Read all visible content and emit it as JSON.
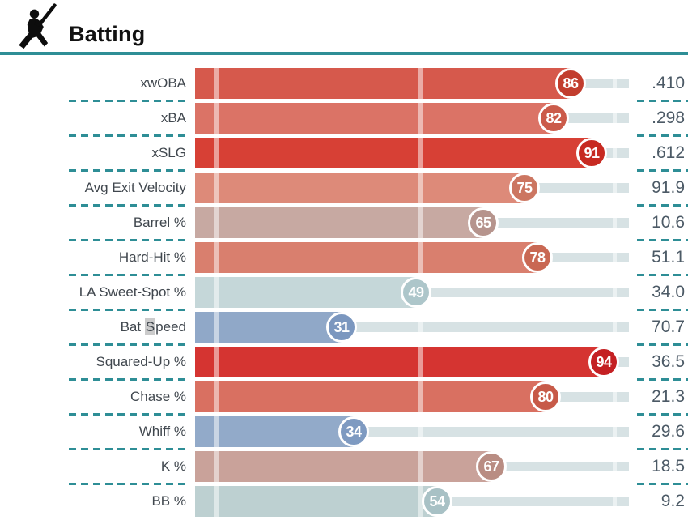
{
  "header": {
    "title": "Batting"
  },
  "colors": {
    "accent_teal": "#2E8E96",
    "track": "#D7E2E4",
    "label_text": "#40474E",
    "value_text": "#4C5A66",
    "selection_highlight": "#CBCBCB"
  },
  "chart_data": {
    "type": "bar",
    "orientation": "horizontal",
    "title": "Batting",
    "percentile_scale": [
      0,
      100
    ],
    "legend": "circle badge = percentile rank, right column = raw stat value",
    "rows": [
      {
        "label": "xwOBA",
        "percentile": 86,
        "value": ".410",
        "bar_color": "#D6594C",
        "circle_color": "#C23D2E"
      },
      {
        "label": "xBA",
        "percentile": 82,
        "value": ".298",
        "bar_color": "#DB7366",
        "circle_color": "#CB5B4A"
      },
      {
        "label": "xSLG",
        "percentile": 91,
        "value": ".612",
        "bar_color": "#D74035",
        "circle_color": "#C72A21"
      },
      {
        "label": "Avg Exit Velocity",
        "percentile": 75,
        "value": "91.9",
        "bar_color": "#DD8A79",
        "circle_color": "#CC7661"
      },
      {
        "label": "Barrel %",
        "percentile": 65,
        "value": "10.6",
        "bar_color": "#C7A9A2",
        "circle_color": "#B6948D"
      },
      {
        "label": "Hard-Hit %",
        "percentile": 78,
        "value": "51.1",
        "bar_color": "#D97F6E",
        "circle_color": "#C96853"
      },
      {
        "label": "LA Sweet-Spot %",
        "percentile": 49,
        "value": "34.0",
        "bar_color": "#C5D7D9",
        "circle_color": "#ADC6CA"
      },
      {
        "label": "Bat Speed",
        "percentile": 31,
        "value": "70.7",
        "bar_color": "#90A8C8",
        "circle_color": "#7B97BF",
        "label_highlight": {
          "before": "Bat ",
          "selected": "S",
          "after": "peed"
        }
      },
      {
        "label": "Squared-Up %",
        "percentile": 94,
        "value": "36.5",
        "bar_color": "#D53431",
        "circle_color": "#C42023"
      },
      {
        "label": "Chase %",
        "percentile": 80,
        "value": "21.3",
        "bar_color": "#D97061",
        "circle_color": "#C75A48"
      },
      {
        "label": "Whiff %",
        "percentile": 34,
        "value": "29.6",
        "bar_color": "#92AAC9",
        "circle_color": "#7E9AC1"
      },
      {
        "label": "K %",
        "percentile": 67,
        "value": "18.5",
        "bar_color": "#C9A29A",
        "circle_color": "#B98D83"
      },
      {
        "label": "BB %",
        "percentile": 54,
        "value": "9.2",
        "bar_color": "#BDD0D1",
        "circle_color": "#A8C1C5"
      }
    ]
  }
}
